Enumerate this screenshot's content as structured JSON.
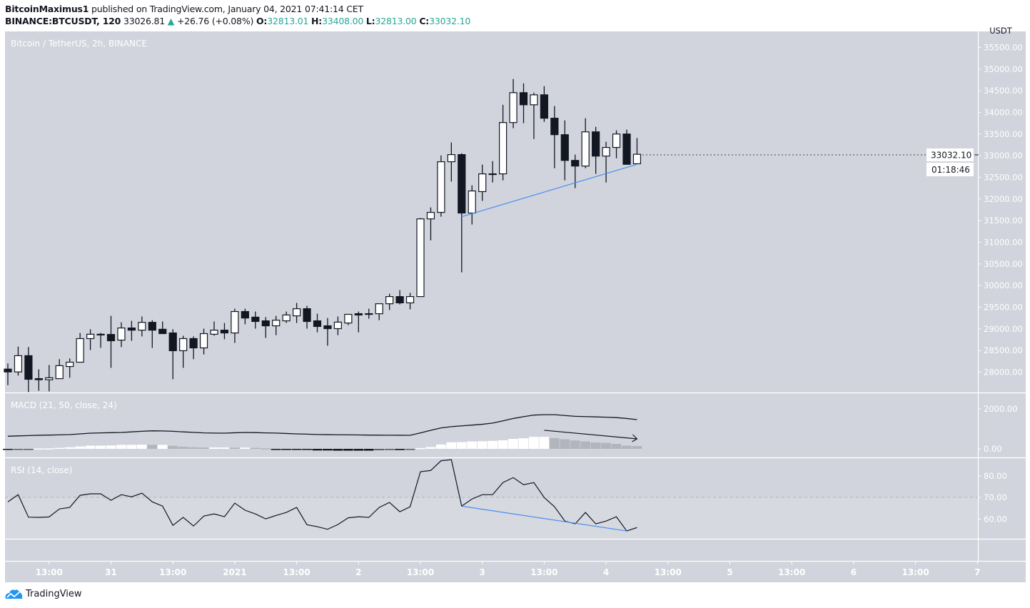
{
  "header": {
    "author": "BitcoinMaximus1",
    "published_text": "published on TradingView.com, January 04, 2021 07:41:14 CET",
    "symbol": "BINANCE:BTCUSDT, 120",
    "last_price": "33026.81",
    "change": "+26.76 (+0.08%)",
    "change_direction": "up",
    "o_label": "O:",
    "o_value": "32813.01",
    "h_label": "H:",
    "h_value": "33408.00",
    "l_label": "L:",
    "l_value": "32813.00",
    "c_label": "C:",
    "c_value": "33032.10"
  },
  "colors": {
    "pane_bg": "#d1d4dc",
    "up_candle": "#ffffff",
    "down_candle": "#131722",
    "trendline": "#4a8ef0",
    "value_teal": "#26a69a"
  },
  "footer": {
    "logo_text": "TradingView"
  },
  "chart_data": [
    {
      "type": "candlestick",
      "title": "Bitcoin / TetherUS, 2h, BINANCE",
      "currency": "USDT",
      "ylim": [
        27530,
        35870
      ],
      "y_ticks": [
        28000,
        28500,
        29000,
        29500,
        30000,
        30500,
        31000,
        31500,
        32000,
        32500,
        33000,
        33500,
        34000,
        34500,
        35000,
        35500
      ],
      "grid": false,
      "last_price_label": "33032.10",
      "countdown_label": "01:18:46",
      "x_tick_labels": [
        "13:00",
        "31",
        "13:00",
        "2021",
        "13:00",
        "2",
        "13:00",
        "3",
        "13:00",
        "4",
        "13:00",
        "5",
        "13:00",
        "6",
        "13:00",
        "7"
      ],
      "ohlc": [
        [
          28070,
          28200,
          27700,
          28005
        ],
        [
          28005,
          28590,
          27920,
          28380
        ],
        [
          28380,
          28580,
          27540,
          27835
        ],
        [
          27850,
          28065,
          27570,
          27825
        ],
        [
          27825,
          28165,
          27555,
          27870
        ],
        [
          27850,
          28300,
          27850,
          28150
        ],
        [
          28130,
          28315,
          27870,
          28230
        ],
        [
          28230,
          28905,
          28230,
          28775
        ],
        [
          28775,
          28990,
          28510,
          28875
        ],
        [
          28875,
          28905,
          28560,
          28870
        ],
        [
          28870,
          29300,
          28100,
          28725
        ],
        [
          28740,
          29150,
          28580,
          29020
        ],
        [
          29020,
          29185,
          28725,
          28970
        ],
        [
          28970,
          29285,
          28825,
          29150
        ],
        [
          29150,
          29200,
          28560,
          28970
        ],
        [
          28990,
          29170,
          28890,
          28890
        ],
        [
          28905,
          28990,
          27835,
          28495
        ],
        [
          28495,
          28840,
          28100,
          28775
        ],
        [
          28775,
          28825,
          28300,
          28560
        ],
        [
          28560,
          29005,
          28410,
          28890
        ],
        [
          28875,
          29170,
          28840,
          28970
        ],
        [
          28970,
          29135,
          28760,
          28905
        ],
        [
          28905,
          29465,
          28675,
          29400
        ],
        [
          29400,
          29465,
          29105,
          29250
        ],
        [
          29270,
          29400,
          29005,
          29170
        ],
        [
          29185,
          29270,
          28790,
          29070
        ],
        [
          29070,
          29300,
          28855,
          29200
        ],
        [
          29185,
          29400,
          29135,
          29320
        ],
        [
          29300,
          29600,
          29135,
          29465
        ],
        [
          29465,
          29530,
          29005,
          29170
        ],
        [
          29185,
          29350,
          28920,
          29055
        ],
        [
          29070,
          29250,
          28610,
          29005
        ],
        [
          29005,
          29285,
          28855,
          29155
        ],
        [
          29135,
          29335,
          29085,
          29335
        ],
        [
          29350,
          29400,
          28920,
          29320
        ],
        [
          29350,
          29465,
          29235,
          29350
        ],
        [
          29350,
          29580,
          29200,
          29580
        ],
        [
          29580,
          29810,
          29435,
          29745
        ],
        [
          29745,
          29895,
          29565,
          29600
        ],
        [
          29600,
          29830,
          29450,
          29745
        ],
        [
          29745,
          31560,
          29745,
          31540
        ],
        [
          31540,
          31805,
          31045,
          31690
        ],
        [
          31690,
          33005,
          31590,
          32860
        ],
        [
          32860,
          33305,
          32400,
          33025
        ],
        [
          33025,
          33055,
          30305,
          31675
        ],
        [
          31675,
          32315,
          31410,
          32185
        ],
        [
          32170,
          32795,
          31955,
          32580
        ],
        [
          32580,
          32875,
          32380,
          32580
        ],
        [
          32580,
          34175,
          32430,
          33765
        ],
        [
          33765,
          34770,
          33635,
          34455
        ],
        [
          34455,
          34670,
          33750,
          34175
        ],
        [
          34175,
          34455,
          33385,
          34405
        ],
        [
          34405,
          34605,
          33780,
          33865
        ],
        [
          33865,
          34145,
          32710,
          33485
        ],
        [
          33485,
          33815,
          32430,
          32890
        ],
        [
          32890,
          33025,
          32250,
          32760
        ],
        [
          32760,
          33865,
          32710,
          33550
        ],
        [
          33550,
          33665,
          32580,
          32990
        ],
        [
          32990,
          33320,
          32380,
          33190
        ],
        [
          33190,
          33585,
          32940,
          33500
        ],
        [
          33500,
          33600,
          32800,
          32800
        ],
        [
          32813.01,
          33408,
          32813,
          33032.1
        ]
      ],
      "trendline": {
        "from": {
          "bar": 44,
          "price": 31590
        },
        "to": {
          "bar": 61,
          "price": 32800
        }
      }
    },
    {
      "type": "line+histogram",
      "title": "MACD (21, 50, close, 24)",
      "ylim": [
        -393,
        2785
      ],
      "y_ticks": [
        0,
        2000
      ],
      "macd": [
        632,
        650,
        665,
        680,
        690,
        700,
        714,
        750,
        786,
        800,
        810,
        822,
        850,
        880,
        903,
        898,
        880,
        850,
        825,
        800,
        790,
        786,
        805,
        820,
        815,
        800,
        790,
        770,
        750,
        735,
        718,
        712,
        705,
        700,
        695,
        690,
        685,
        682,
        680,
        678,
        800,
        930,
        1050,
        1110,
        1150,
        1190,
        1230,
        1290,
        1400,
        1520,
        1610,
        1690,
        1710,
        1710,
        1670,
        1630,
        1615,
        1600,
        1585,
        1565,
        1520,
        1464
      ],
      "histogram": [
        -40,
        -30,
        -20,
        20,
        25,
        50,
        80,
        120,
        160,
        160,
        170,
        200,
        200,
        210,
        200,
        200,
        150,
        110,
        80,
        70,
        70,
        70,
        60,
        65,
        50,
        25,
        -30,
        -30,
        -30,
        -40,
        -80,
        -80,
        -90,
        -90,
        -90,
        -90,
        -70,
        -60,
        -60,
        -50,
        40,
        90,
        220,
        330,
        340,
        370,
        380,
        400,
        430,
        500,
        530,
        600,
        600,
        540,
        480,
        420,
        370,
        320,
        300,
        250,
        160,
        140
      ],
      "histogram_colors": {
        "rising_positive": "#ffffff",
        "falling_positive": "#b2b5be",
        "falling_negative": "#131722",
        "rising_negative": "#5d606b"
      },
      "arrow": {
        "from": {
          "bar": 52,
          "value": 930
        },
        "to": {
          "bar": 61,
          "value": 500
        }
      }
    },
    {
      "type": "line",
      "title": "RSI (14, close)",
      "ylim": [
        50.9,
        88.2
      ],
      "y_ticks": [
        60,
        70,
        80
      ],
      "reference_line": 70,
      "values": [
        68.0,
        71.3,
        60.9,
        60.8,
        61.0,
        64.7,
        65.4,
        71.0,
        71.7,
        71.7,
        68.7,
        71.3,
        70.3,
        72.0,
        68.0,
        66.0,
        57.1,
        60.8,
        56.8,
        61.4,
        62.4,
        61.1,
        67.4,
        64.1,
        62.4,
        60.1,
        61.7,
        63.1,
        65.4,
        57.4,
        56.5,
        55.3,
        57.5,
        60.6,
        61.1,
        60.8,
        65.4,
        67.7,
        63.4,
        65.7,
        81.9,
        82.5,
        87.0,
        87.5,
        66.0,
        69.3,
        71.3,
        71.3,
        76.9,
        79.2,
        75.9,
        76.9,
        70.0,
        65.7,
        59.1,
        57.8,
        63.1,
        57.8,
        59.1,
        61.1,
        54.5,
        56.1
      ],
      "trendline": {
        "from": {
          "bar": 44,
          "value": 66.0
        },
        "to": {
          "bar": 60,
          "value": 54.5
        }
      }
    }
  ]
}
